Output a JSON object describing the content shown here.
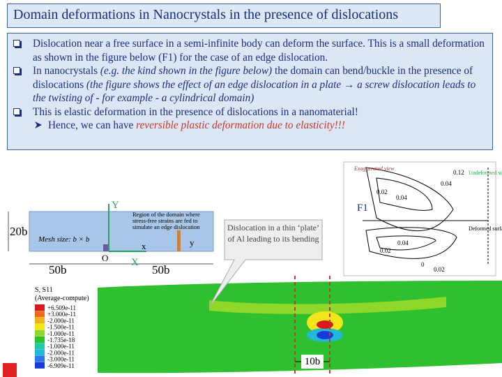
{
  "title": "Domain deformations in Nanocrystals in the presence of dislocations",
  "bullets": [
    [
      "Dislocation near a free surface in a semi-infinite body can deform the surface. This is a small deformation as shown in the figure below (F1) for the case of an edge dislocation."
    ],
    [
      "In nanocrystals ",
      "(e.g. the kind shown in the figure below)",
      " the domain can bend/buckle in the presence of dislocations ",
      "(the figure shows the effect of an edge dislocation in a plate → a screw dislocation leads to the twisting of - for example - a cylindrical domain)"
    ],
    [
      "This is elastic deformation in the presence of dislocations in a nanomaterial!"
    ]
  ],
  "sub_bullet": [
    "Hence, we can have ",
    "reversible plastic deformation due to elasticity!!!"
  ],
  "mesh_figure": {
    "y_axis": "Y",
    "x_axis": "X",
    "height": "20b",
    "region_note": "Region of the domain where stress-free strains are fed to simulate an edge dislocation",
    "mesh_size": "Mesh size: b × b",
    "local_x": "x",
    "local_y": "y",
    "origin": "O",
    "left_width": "50b",
    "right_width": "50b"
  },
  "f1_figure": {
    "label": "F1",
    "exaggerated": "Exaggerated view",
    "undeformed": "Undeformed surface",
    "deformed": "Deformed surface",
    "contours": [
      "0.12",
      "0.04",
      "0.02",
      "0.04",
      "0.02",
      "0.04",
      "0",
      "0.02"
    ]
  },
  "callout": "Dislocation in a thin ‘plate’ of Al leading to its bending",
  "stress_plot": {
    "title": "S, S11",
    "subtitle": "(Average-compute)",
    "legend": [
      "+6.509e-11",
      "+3.000e-11",
      "-2.000e-11",
      "-1.500e-11",
      "-1.000e-11",
      "-1.735e-18",
      "-1.000e-11",
      "-2.000e-11",
      "-3.000e-11",
      "-6.909e-11"
    ],
    "width_label": "10b"
  }
}
